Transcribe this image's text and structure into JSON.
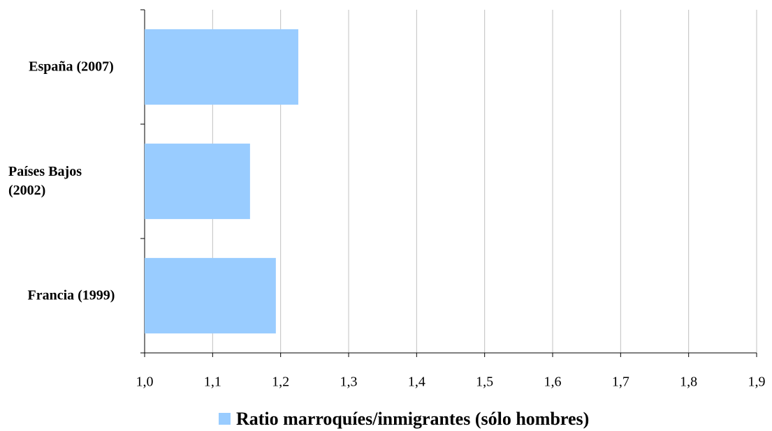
{
  "chart_data": {
    "type": "hbar",
    "categories": [
      "España (2007)",
      "Países Bajos (2002)",
      "Francia (1999)"
    ],
    "series": [
      {
        "name": "Ratio marroquíes/inmigrantes (sólo hombres)",
        "color": "#99ccff",
        "values": [
          1.226,
          1.155,
          1.193
        ]
      }
    ],
    "xlim": [
      1.0,
      1.9
    ],
    "xticks": [
      {
        "value": 1.0,
        "label": "1,0"
      },
      {
        "value": 1.1,
        "label": "1,1"
      },
      {
        "value": 1.2,
        "label": "1,2"
      },
      {
        "value": 1.3,
        "label": "1,3"
      },
      {
        "value": 1.4,
        "label": "1,4"
      },
      {
        "value": 1.5,
        "label": "1,5"
      },
      {
        "value": 1.6,
        "label": "1,6"
      },
      {
        "value": 1.7,
        "label": "1,7"
      },
      {
        "value": 1.8,
        "label": "1,8"
      },
      {
        "value": 1.9,
        "label": "1,9"
      }
    ],
    "grid": true
  }
}
